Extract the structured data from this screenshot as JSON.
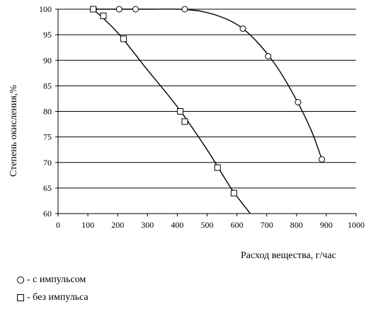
{
  "chart_data": {
    "type": "scatter",
    "title": "",
    "xlabel": "Расход вещества,  г/час",
    "ylabel": "Степень окисления,%",
    "xlim": [
      0,
      1000
    ],
    "ylim": [
      60,
      100
    ],
    "xticks": [
      0,
      100,
      200,
      300,
      400,
      500,
      600,
      700,
      800,
      900,
      1000
    ],
    "yticks": [
      60,
      65,
      70,
      75,
      80,
      85,
      90,
      95,
      100
    ],
    "grid": "horizontal",
    "series": [
      {
        "name": "- с импульсом",
        "marker": "circle",
        "x": [
          120,
          205,
          260,
          425,
          620,
          705,
          805,
          885
        ],
        "y": [
          100,
          100,
          100,
          100,
          96.2,
          90.8,
          81.8,
          70.6
        ],
        "curve": {
          "x": [
            120,
            200,
            300,
            400,
            480,
            560,
            620,
            680,
            740,
            800,
            850,
            885
          ],
          "y": [
            100,
            100,
            100,
            100,
            99.6,
            98.2,
            96.2,
            92.8,
            88.2,
            82.2,
            76.2,
            70.6
          ]
        }
      },
      {
        "name": "- без импульса",
        "marker": "square",
        "x": [
          118,
          152,
          220,
          410,
          425,
          535,
          590
        ],
        "y": [
          100,
          98.7,
          94.2,
          80,
          78,
          69,
          64
        ],
        "curve": {
          "x": [
            118,
            200,
            300,
            400,
            500,
            580,
            645
          ],
          "y": [
            100,
            95.4,
            88.1,
            80.9,
            72.5,
            65,
            60
          ]
        }
      }
    ],
    "legend_position": "bottom-left"
  }
}
